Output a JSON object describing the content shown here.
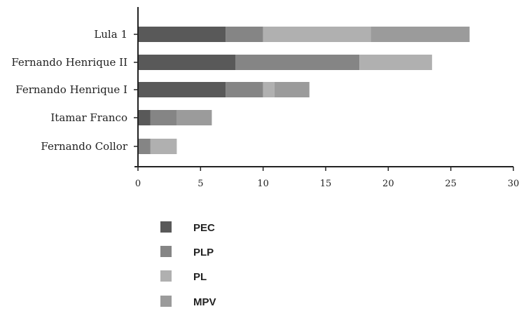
{
  "chart_data": {
    "type": "bar",
    "orientation": "horizontal",
    "stacked": true,
    "categories": [
      "Lula 1",
      "Fernando Henrique II",
      "Fernando Henrique I",
      "Itamar Franco",
      "Fernando Collor"
    ],
    "series": [
      {
        "name": "PEC",
        "color": "#595959",
        "values": [
          7.0,
          7.8,
          7.0,
          1.0,
          0.0
        ]
      },
      {
        "name": "PLP",
        "color": "#858585",
        "values": [
          3.0,
          9.9,
          3.0,
          2.1,
          1.0
        ]
      },
      {
        "name": "PL",
        "color": "#b0b0b0",
        "values": [
          8.6,
          5.8,
          0.9,
          0.0,
          2.1
        ]
      },
      {
        "name": "MPV",
        "color": "#9b9b9b",
        "values": [
          7.9,
          0.0,
          2.8,
          2.8,
          0.0
        ]
      }
    ],
    "xlim": [
      0,
      30
    ],
    "xticks": [
      "0",
      "5",
      "10",
      "15",
      "20",
      "25",
      "30"
    ],
    "legend_position": "bottom",
    "grid": false
  }
}
